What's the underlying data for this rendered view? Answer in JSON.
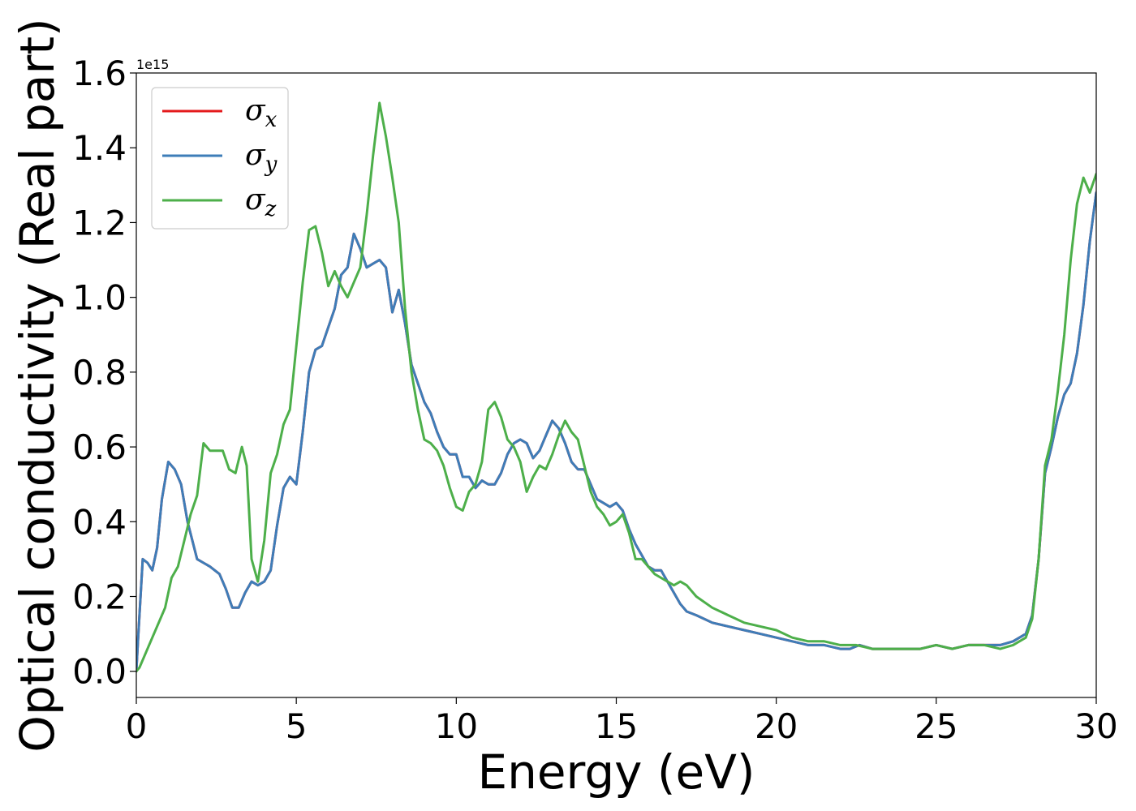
{
  "chart_data": {
    "type": "line",
    "xlabel": "Energy (eV)",
    "ylabel": "Optical conductivity (Real part)",
    "y_offset_label": "1e15",
    "xlim": [
      0,
      30
    ],
    "ylim": [
      -0.07,
      1.6
    ],
    "xticks": [
      0,
      5,
      10,
      15,
      20,
      25,
      30
    ],
    "yticks": [
      0.0,
      0.2,
      0.4,
      0.6,
      0.8,
      1.0,
      1.2,
      1.4,
      1.6
    ],
    "xtick_labels": [
      "0",
      "5",
      "10",
      "15",
      "20",
      "25",
      "30"
    ],
    "ytick_labels": [
      "0.0",
      "0.2",
      "0.4",
      "0.6",
      "0.8",
      "1.0",
      "1.2",
      "1.4",
      "1.6"
    ],
    "grid": false,
    "legend_position": "top-left",
    "series": [
      {
        "name": "σx",
        "symbol": "σ",
        "subscript": "x",
        "color": "#e41a1c",
        "x": [
          0,
          0.05,
          0.2,
          0.35,
          0.5,
          0.65,
          0.8,
          1.0,
          1.2,
          1.4,
          1.6,
          1.9,
          2.1,
          2.3,
          2.6,
          2.8,
          3.0,
          3.2,
          3.4,
          3.6,
          3.8,
          4.0,
          4.2,
          4.4,
          4.6,
          4.8,
          5.0,
          5.2,
          5.4,
          5.6,
          5.8,
          6.0,
          6.2,
          6.4,
          6.6,
          6.8,
          7.0,
          7.2,
          7.4,
          7.6,
          7.8,
          8.0,
          8.2,
          8.4,
          8.6,
          8.8,
          9.0,
          9.2,
          9.4,
          9.6,
          9.8,
          10.0,
          10.2,
          10.4,
          10.6,
          10.8,
          11.0,
          11.2,
          11.4,
          11.6,
          11.8,
          12.0,
          12.2,
          12.4,
          12.6,
          12.8,
          13.0,
          13.2,
          13.4,
          13.6,
          13.8,
          14.0,
          14.2,
          14.4,
          14.6,
          14.8,
          15.0,
          15.2,
          15.4,
          15.6,
          15.8,
          16.0,
          16.2,
          16.4,
          16.6,
          16.8,
          17.0,
          17.2,
          17.5,
          18.0,
          18.5,
          19.0,
          19.5,
          20.0,
          20.5,
          21.0,
          21.5,
          22.0,
          22.3,
          22.6,
          23.0,
          23.5,
          24.0,
          24.5,
          25.0,
          25.5,
          26.0,
          26.5,
          27.0,
          27.4,
          27.8,
          28.0,
          28.2,
          28.4,
          28.6,
          28.8,
          29.0,
          29.2,
          29.4,
          29.6,
          29.8,
          30.0
        ],
        "values": [
          0.0,
          0.08,
          0.3,
          0.29,
          0.27,
          0.33,
          0.46,
          0.56,
          0.54,
          0.5,
          0.4,
          0.3,
          0.29,
          0.28,
          0.26,
          0.22,
          0.17,
          0.17,
          0.21,
          0.24,
          0.23,
          0.24,
          0.27,
          0.39,
          0.49,
          0.52,
          0.5,
          0.64,
          0.8,
          0.86,
          0.87,
          0.92,
          0.97,
          1.06,
          1.08,
          1.17,
          1.13,
          1.08,
          1.09,
          1.1,
          1.08,
          0.96,
          1.02,
          0.93,
          0.82,
          0.77,
          0.72,
          0.69,
          0.64,
          0.6,
          0.58,
          0.58,
          0.52,
          0.52,
          0.49,
          0.51,
          0.5,
          0.5,
          0.53,
          0.58,
          0.61,
          0.62,
          0.61,
          0.57,
          0.59,
          0.63,
          0.67,
          0.65,
          0.61,
          0.56,
          0.54,
          0.54,
          0.5,
          0.46,
          0.45,
          0.44,
          0.45,
          0.43,
          0.38,
          0.34,
          0.31,
          0.28,
          0.27,
          0.27,
          0.24,
          0.21,
          0.18,
          0.16,
          0.15,
          0.13,
          0.12,
          0.11,
          0.1,
          0.09,
          0.08,
          0.07,
          0.07,
          0.06,
          0.06,
          0.07,
          0.06,
          0.06,
          0.06,
          0.06,
          0.07,
          0.06,
          0.07,
          0.07,
          0.07,
          0.08,
          0.1,
          0.15,
          0.3,
          0.53,
          0.6,
          0.68,
          0.74,
          0.77,
          0.85,
          0.98,
          1.15,
          1.28
        ]
      },
      {
        "name": "σy",
        "symbol": "σ",
        "subscript": "y",
        "color": "#3e7db8",
        "x": [
          0,
          0.05,
          0.2,
          0.35,
          0.5,
          0.65,
          0.8,
          1.0,
          1.2,
          1.4,
          1.6,
          1.9,
          2.1,
          2.3,
          2.6,
          2.8,
          3.0,
          3.2,
          3.4,
          3.6,
          3.8,
          4.0,
          4.2,
          4.4,
          4.6,
          4.8,
          5.0,
          5.2,
          5.4,
          5.6,
          5.8,
          6.0,
          6.2,
          6.4,
          6.6,
          6.8,
          7.0,
          7.2,
          7.4,
          7.6,
          7.8,
          8.0,
          8.2,
          8.4,
          8.6,
          8.8,
          9.0,
          9.2,
          9.4,
          9.6,
          9.8,
          10.0,
          10.2,
          10.4,
          10.6,
          10.8,
          11.0,
          11.2,
          11.4,
          11.6,
          11.8,
          12.0,
          12.2,
          12.4,
          12.6,
          12.8,
          13.0,
          13.2,
          13.4,
          13.6,
          13.8,
          14.0,
          14.2,
          14.4,
          14.6,
          14.8,
          15.0,
          15.2,
          15.4,
          15.6,
          15.8,
          16.0,
          16.2,
          16.4,
          16.6,
          16.8,
          17.0,
          17.2,
          17.5,
          18.0,
          18.5,
          19.0,
          19.5,
          20.0,
          20.5,
          21.0,
          21.5,
          22.0,
          22.3,
          22.6,
          23.0,
          23.5,
          24.0,
          24.5,
          25.0,
          25.5,
          26.0,
          26.5,
          27.0,
          27.4,
          27.8,
          28.0,
          28.2,
          28.4,
          28.6,
          28.8,
          29.0,
          29.2,
          29.4,
          29.6,
          29.8,
          30.0
        ],
        "values": [
          0.0,
          0.08,
          0.3,
          0.29,
          0.27,
          0.33,
          0.46,
          0.56,
          0.54,
          0.5,
          0.4,
          0.3,
          0.29,
          0.28,
          0.26,
          0.22,
          0.17,
          0.17,
          0.21,
          0.24,
          0.23,
          0.24,
          0.27,
          0.39,
          0.49,
          0.52,
          0.5,
          0.64,
          0.8,
          0.86,
          0.87,
          0.92,
          0.97,
          1.06,
          1.08,
          1.17,
          1.13,
          1.08,
          1.09,
          1.1,
          1.08,
          0.96,
          1.02,
          0.93,
          0.82,
          0.77,
          0.72,
          0.69,
          0.64,
          0.6,
          0.58,
          0.58,
          0.52,
          0.52,
          0.49,
          0.51,
          0.5,
          0.5,
          0.53,
          0.58,
          0.61,
          0.62,
          0.61,
          0.57,
          0.59,
          0.63,
          0.67,
          0.65,
          0.61,
          0.56,
          0.54,
          0.54,
          0.5,
          0.46,
          0.45,
          0.44,
          0.45,
          0.43,
          0.38,
          0.34,
          0.31,
          0.28,
          0.27,
          0.27,
          0.24,
          0.21,
          0.18,
          0.16,
          0.15,
          0.13,
          0.12,
          0.11,
          0.1,
          0.09,
          0.08,
          0.07,
          0.07,
          0.06,
          0.06,
          0.07,
          0.06,
          0.06,
          0.06,
          0.06,
          0.07,
          0.06,
          0.07,
          0.07,
          0.07,
          0.08,
          0.1,
          0.15,
          0.3,
          0.53,
          0.6,
          0.68,
          0.74,
          0.77,
          0.85,
          0.98,
          1.15,
          1.28
        ]
      },
      {
        "name": "σz",
        "symbol": "σ",
        "subscript": "z",
        "color": "#4daf4a",
        "x": [
          0,
          0.1,
          0.3,
          0.5,
          0.7,
          0.9,
          1.1,
          1.3,
          1.5,
          1.7,
          1.9,
          2.1,
          2.3,
          2.5,
          2.7,
          2.9,
          3.1,
          3.3,
          3.45,
          3.6,
          3.8,
          4.0,
          4.2,
          4.4,
          4.6,
          4.8,
          5.0,
          5.2,
          5.4,
          5.6,
          5.8,
          6.0,
          6.2,
          6.4,
          6.6,
          6.8,
          7.0,
          7.2,
          7.4,
          7.6,
          7.8,
          8.0,
          8.2,
          8.4,
          8.6,
          8.8,
          9.0,
          9.2,
          9.4,
          9.6,
          9.8,
          10.0,
          10.2,
          10.4,
          10.6,
          10.8,
          11.0,
          11.2,
          11.4,
          11.6,
          11.8,
          12.0,
          12.2,
          12.4,
          12.6,
          12.8,
          13.0,
          13.2,
          13.4,
          13.6,
          13.8,
          14.0,
          14.2,
          14.4,
          14.6,
          14.8,
          15.0,
          15.2,
          15.4,
          15.6,
          15.8,
          16.0,
          16.2,
          16.4,
          16.6,
          16.8,
          17.0,
          17.2,
          17.5,
          18.0,
          18.5,
          19.0,
          19.5,
          20.0,
          20.5,
          21.0,
          21.5,
          22.0,
          22.5,
          23.0,
          23.5,
          24.0,
          24.5,
          25.0,
          25.5,
          26.0,
          26.5,
          27.0,
          27.4,
          27.8,
          28.0,
          28.2,
          28.4,
          28.6,
          28.8,
          29.0,
          29.2,
          29.4,
          29.6,
          29.8,
          30.0
        ],
        "values": [
          0.0,
          0.01,
          0.05,
          0.09,
          0.13,
          0.17,
          0.25,
          0.28,
          0.35,
          0.42,
          0.47,
          0.61,
          0.59,
          0.59,
          0.59,
          0.54,
          0.53,
          0.6,
          0.55,
          0.3,
          0.24,
          0.35,
          0.53,
          0.58,
          0.66,
          0.7,
          0.87,
          1.04,
          1.18,
          1.19,
          1.12,
          1.03,
          1.07,
          1.03,
          1.0,
          1.04,
          1.08,
          1.22,
          1.38,
          1.52,
          1.43,
          1.32,
          1.2,
          0.97,
          0.8,
          0.7,
          0.62,
          0.61,
          0.59,
          0.55,
          0.49,
          0.44,
          0.43,
          0.48,
          0.5,
          0.56,
          0.7,
          0.72,
          0.68,
          0.62,
          0.6,
          0.56,
          0.48,
          0.52,
          0.55,
          0.54,
          0.58,
          0.63,
          0.67,
          0.64,
          0.62,
          0.55,
          0.48,
          0.44,
          0.42,
          0.39,
          0.4,
          0.42,
          0.37,
          0.3,
          0.3,
          0.28,
          0.26,
          0.25,
          0.24,
          0.23,
          0.24,
          0.23,
          0.2,
          0.17,
          0.15,
          0.13,
          0.12,
          0.11,
          0.09,
          0.08,
          0.08,
          0.07,
          0.07,
          0.06,
          0.06,
          0.06,
          0.06,
          0.07,
          0.06,
          0.07,
          0.07,
          0.06,
          0.07,
          0.09,
          0.14,
          0.3,
          0.55,
          0.62,
          0.75,
          0.9,
          1.1,
          1.25,
          1.32,
          1.28,
          1.33
        ]
      }
    ]
  }
}
